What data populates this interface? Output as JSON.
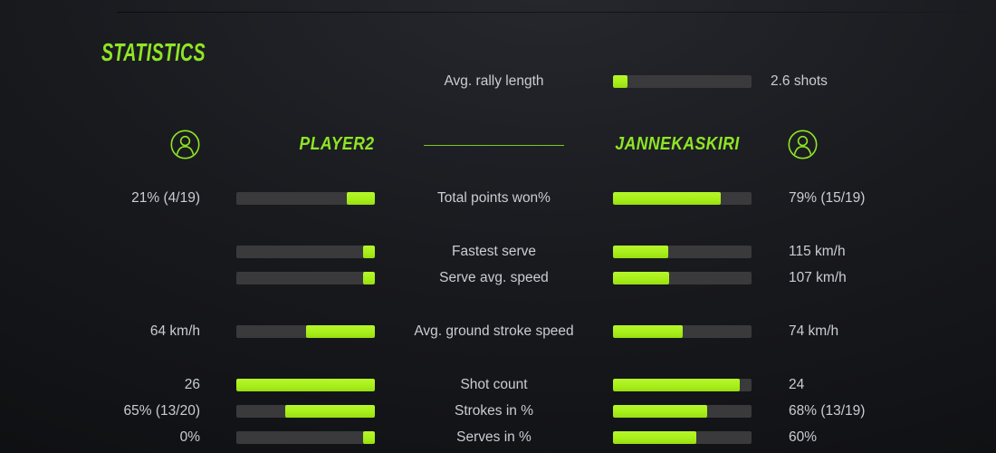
{
  "title": "STATISTICS",
  "colors": {
    "accent_text": "#8fe525",
    "accent_bar": "#a8ef1a",
    "bar_track": "#3a3a3c",
    "text": "#c9cdd2"
  },
  "icons": {
    "player_avatar": "user-circle-icon"
  },
  "rally": {
    "label": "Avg. rally length",
    "value": "2.6 shots",
    "fill_pct": 10.5
  },
  "players": {
    "left": {
      "name": "PLAYER2"
    },
    "right": {
      "name": "JANNEKASKIRI"
    }
  },
  "stats": [
    {
      "label": "Total points won%",
      "left_value": "21% (4/19)",
      "right_value": "79% (15/19)",
      "left_pct": 20.5,
      "right_pct": 78,
      "group_start": true
    },
    {
      "label": "Fastest serve",
      "left_value": "",
      "right_value": "115 km/h",
      "left_pct": 8.5,
      "right_pct": 40,
      "group_start": true
    },
    {
      "label": "Serve avg. speed",
      "left_value": "",
      "right_value": "107 km/h",
      "left_pct": 8.5,
      "right_pct": 40.5,
      "group_start": false
    },
    {
      "label": "Avg. ground stroke speed",
      "left_value": "64 km/h",
      "right_value": "74 km/h",
      "left_pct": 50,
      "right_pct": 50,
      "group_start": true
    },
    {
      "label": "Shot count",
      "left_value": "26",
      "right_value": "24",
      "left_pct": 100,
      "right_pct": 91.5,
      "group_start": true
    },
    {
      "label": "Strokes in %",
      "left_value": "65% (13/20)",
      "right_value": "68% (13/19)",
      "left_pct": 65,
      "right_pct": 68,
      "group_start": false
    },
    {
      "label": "Serves in %",
      "left_value": "0%",
      "right_value": "60%",
      "left_pct": 8.5,
      "right_pct": 60,
      "group_start": false
    }
  ]
}
